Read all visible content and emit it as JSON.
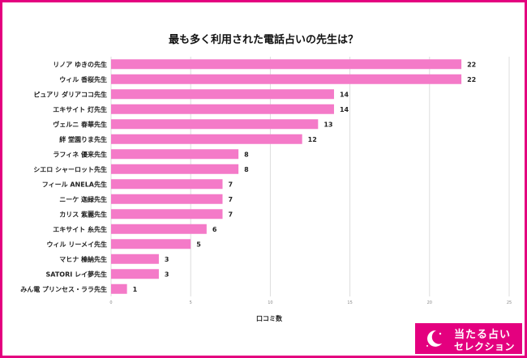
{
  "title": "最も多く利用された電話占いの先生は？",
  "badge": {
    "line1": "当たる占い",
    "line2": "セレクション",
    "icon": "crescent-moon-icon"
  },
  "colors": {
    "bar": "#f47ac8",
    "frame": "#e4007f",
    "grid": "#dddddd"
  },
  "chart_data": {
    "type": "bar",
    "orientation": "horizontal",
    "title": "最も多く利用された電話占いの先生は？",
    "xlabel": "口コミ数",
    "ylabel": "",
    "xlim": [
      0,
      25
    ],
    "xticks": [
      0,
      5,
      10,
      15,
      20,
      25
    ],
    "grid": true,
    "categories": [
      "リノア ゆきの先生",
      "ウィル 香桜先生",
      "ピュアリ ダリアココ先生",
      "エキサイト 灯先生",
      "ヴェルニ 春華先生",
      "絆 堂園りま先生",
      "ラフィネ 優来先生",
      "シエロ シャーロット先生",
      "フィール ANELA先生",
      "ニーケ 迦緑先生",
      "カリス 紫麗先生",
      "エキサイト 糸先生",
      "ウィル リーメイ先生",
      "マヒナ 榛納先生",
      "SATORI レイ夢先生",
      "みん電 プリンセス・ララ先生"
    ],
    "values": [
      22,
      22,
      14,
      14,
      13,
      12,
      8,
      8,
      7,
      7,
      7,
      6,
      5,
      3,
      3,
      1
    ]
  }
}
